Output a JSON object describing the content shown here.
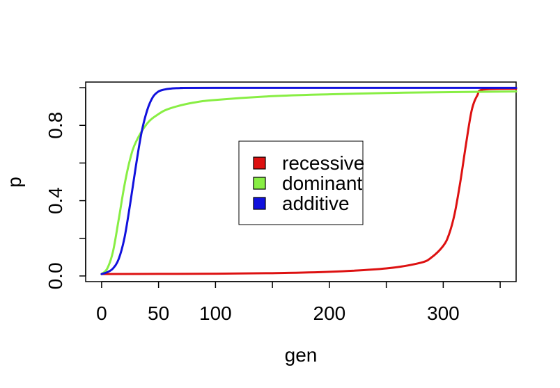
{
  "chart_data": {
    "type": "line",
    "xlabel": "gen",
    "ylabel": "p",
    "xlim": [
      -14,
      364
    ],
    "ylim": [
      -0.03,
      1.03
    ],
    "x_ticks": [
      0,
      50,
      100,
      150,
      200,
      250,
      300,
      350
    ],
    "x_tick_labels": [
      "0",
      "50",
      "100",
      "",
      "200",
      "",
      "300",
      ""
    ],
    "y_ticks": [
      0.0,
      0.2,
      0.4,
      0.6,
      0.8,
      1.0
    ],
    "y_tick_labels": [
      "0.0",
      "",
      "0.4",
      "",
      "0.8",
      ""
    ],
    "grid": false,
    "legend": {
      "position": "center",
      "entries": [
        {
          "label": "recessive",
          "color": "#dd1111"
        },
        {
          "label": "dominant",
          "color": "#88ee44"
        },
        {
          "label": "additive",
          "color": "#1111dd"
        }
      ]
    },
    "series": [
      {
        "name": "recessive",
        "color": "#dd1111",
        "x": [
          0,
          50,
          100,
          150,
          200,
          250,
          280,
          290,
          300,
          305,
          310,
          315,
          320,
          325,
          330,
          335,
          364
        ],
        "values": [
          0.01,
          0.011,
          0.012,
          0.015,
          0.022,
          0.04,
          0.07,
          0.1,
          0.16,
          0.22,
          0.33,
          0.5,
          0.7,
          0.88,
          0.96,
          0.99,
          0.995
        ]
      },
      {
        "name": "dominant",
        "color": "#88ee44",
        "x": [
          0,
          5,
          10,
          15,
          20,
          25,
          30,
          40,
          50,
          60,
          80,
          100,
          150,
          200,
          250,
          300,
          364
        ],
        "values": [
          0.01,
          0.04,
          0.13,
          0.3,
          0.48,
          0.62,
          0.71,
          0.81,
          0.86,
          0.89,
          0.92,
          0.935,
          0.955,
          0.965,
          0.972,
          0.976,
          0.98
        ]
      },
      {
        "name": "additive",
        "color": "#1111dd",
        "x": [
          0,
          5,
          10,
          15,
          20,
          25,
          30,
          35,
          40,
          45,
          50,
          55,
          60,
          70,
          100,
          364
        ],
        "values": [
          0.01,
          0.02,
          0.04,
          0.09,
          0.2,
          0.38,
          0.58,
          0.76,
          0.88,
          0.95,
          0.98,
          0.99,
          0.995,
          0.998,
          0.999,
          0.999
        ]
      }
    ]
  }
}
